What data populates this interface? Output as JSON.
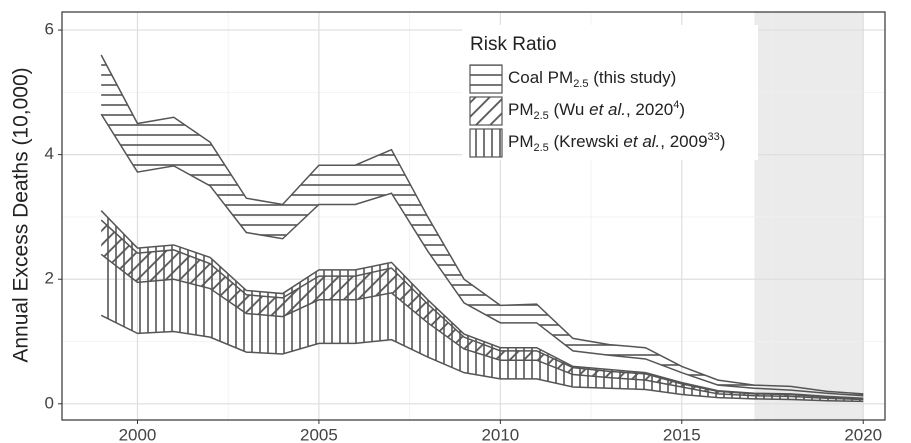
{
  "chart_data": {
    "type": "ribbon",
    "y_label": "Annual Excess Deaths (10,000)",
    "legend_title": "Risk Ratio",
    "legend_position": "top-right",
    "grid": true,
    "minor_grid": true,
    "shaded_region": [
      2017,
      2020
    ],
    "x": [
      1999,
      2000,
      2001,
      2002,
      2003,
      2004,
      2005,
      2006,
      2007,
      2008,
      2009,
      2010,
      2011,
      2012,
      2013,
      2014,
      2015,
      2016,
      2017,
      2018,
      2019,
      2020
    ],
    "xlim": [
      1997.92,
      2020.6
    ],
    "xticks": [
      2000,
      2005,
      2010,
      2015,
      2020
    ],
    "ylim": [
      -0.26,
      6.29
    ],
    "yticks": [
      0,
      2,
      4,
      6
    ],
    "series": [
      {
        "name": [
          [
            "Coal PM",
            ""
          ],
          [
            "2.5",
            "sub"
          ],
          [
            " (this study)",
            ""
          ]
        ],
        "pattern": "horizontal",
        "color": "#555555",
        "upper": [
          5.6,
          4.5,
          4.6,
          4.2,
          3.3,
          3.2,
          3.83,
          3.83,
          4.08,
          3.0,
          2.0,
          1.58,
          1.6,
          1.05,
          0.95,
          0.9,
          0.6,
          0.38,
          0.3,
          0.28,
          0.2,
          0.16
        ],
        "lower": [
          4.65,
          3.72,
          3.82,
          3.5,
          2.75,
          2.65,
          3.2,
          3.2,
          3.38,
          2.45,
          1.62,
          1.3,
          1.3,
          0.85,
          0.78,
          0.72,
          0.5,
          0.3,
          0.25,
          0.22,
          0.17,
          0.13
        ]
      },
      {
        "name": [
          [
            "PM",
            ""
          ],
          [
            "2.5",
            "sub"
          ],
          [
            " (Wu ",
            ""
          ],
          [
            "et al.",
            "italic"
          ],
          [
            ", 2020",
            ""
          ],
          [
            "4",
            "sup"
          ],
          [
            ")",
            ""
          ]
        ],
        "pattern": "diagonal",
        "color": "#555555",
        "upper": [
          2.95,
          2.42,
          2.47,
          2.25,
          1.75,
          1.7,
          2.05,
          2.05,
          2.18,
          1.6,
          1.07,
          0.85,
          0.85,
          0.58,
          0.52,
          0.48,
          0.32,
          0.2,
          0.16,
          0.15,
          0.11,
          0.08
        ],
        "lower": [
          2.4,
          1.95,
          2.0,
          1.85,
          1.45,
          1.4,
          1.67,
          1.67,
          1.78,
          1.3,
          0.88,
          0.7,
          0.7,
          0.47,
          0.42,
          0.38,
          0.27,
          0.16,
          0.13,
          0.12,
          0.09,
          0.07
        ]
      },
      {
        "name": [
          [
            "PM",
            ""
          ],
          [
            "2.5",
            "sub"
          ],
          [
            " (Krewski ",
            ""
          ],
          [
            "et al.",
            "italic"
          ],
          [
            ", 2009",
            ""
          ],
          [
            "33",
            "sup"
          ],
          [
            ")",
            ""
          ]
        ],
        "pattern": "vertical",
        "color": "#555555",
        "upper": [
          3.1,
          2.5,
          2.55,
          2.35,
          1.82,
          1.77,
          2.15,
          2.15,
          2.27,
          1.67,
          1.12,
          0.9,
          0.9,
          0.6,
          0.55,
          0.5,
          0.34,
          0.21,
          0.17,
          0.16,
          0.12,
          0.09
        ],
        "lower": [
          1.42,
          1.13,
          1.16,
          1.07,
          0.83,
          0.8,
          0.97,
          0.97,
          1.03,
          0.75,
          0.5,
          0.4,
          0.4,
          0.27,
          0.25,
          0.23,
          0.15,
          0.1,
          0.08,
          0.07,
          0.05,
          0.04
        ]
      }
    ]
  }
}
